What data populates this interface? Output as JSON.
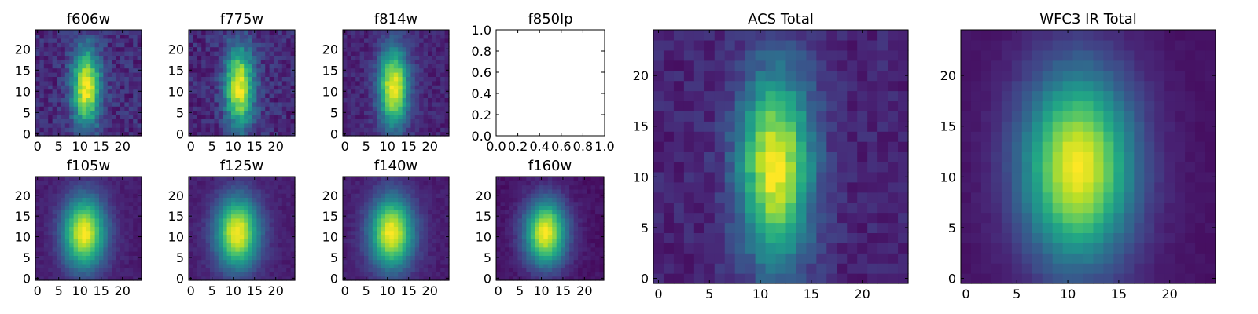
{
  "chart_data": [
    {
      "type": "heatmap",
      "title": "f606w",
      "colormap": "viridis",
      "xlim": [
        -0.5,
        24.5
      ],
      "ylim": [
        -0.5,
        24.5
      ],
      "xticks": [
        0,
        5,
        10,
        15,
        20
      ],
      "yticks": [
        0,
        5,
        10,
        15,
        20
      ],
      "source": {
        "cx": 11.5,
        "cy": 11,
        "sx": 2.4,
        "sy": 6.5,
        "peak": 1.0,
        "bg": 0.12,
        "noise": 0.09
      }
    },
    {
      "type": "heatmap",
      "title": "f775w",
      "colormap": "viridis",
      "xlim": [
        -0.5,
        24.5
      ],
      "ylim": [
        -0.5,
        24.5
      ],
      "xticks": [
        0,
        5,
        10,
        15,
        20
      ],
      "yticks": [
        0,
        5,
        10,
        15,
        20
      ],
      "source": {
        "cx": 11.5,
        "cy": 11,
        "sx": 2.4,
        "sy": 6.5,
        "peak": 1.0,
        "bg": 0.12,
        "noise": 0.09
      }
    },
    {
      "type": "heatmap",
      "title": "f814w",
      "colormap": "viridis",
      "xlim": [
        -0.5,
        24.5
      ],
      "ylim": [
        -0.5,
        24.5
      ],
      "xticks": [
        0,
        5,
        10,
        15,
        20
      ],
      "yticks": [
        0,
        5,
        10,
        15,
        20
      ],
      "source": {
        "cx": 11.5,
        "cy": 11,
        "sx": 2.5,
        "sy": 6.5,
        "peak": 1.0,
        "bg": 0.1,
        "noise": 0.06
      }
    },
    {
      "type": "empty",
      "title": "f850lp",
      "xlim": [
        0,
        1
      ],
      "ylim": [
        0,
        1
      ],
      "xticks": [
        0.0,
        0.2,
        0.4,
        0.6,
        0.8,
        1.0
      ],
      "yticks": [
        0.0,
        0.2,
        0.4,
        0.6,
        0.8,
        1.0
      ],
      "xtick_labels": [
        "0.0",
        "0.2",
        "0.4",
        "0.6",
        "0.8",
        "1.0"
      ],
      "ytick_labels": [
        "0.0",
        "0.2",
        "0.4",
        "0.6",
        "0.8",
        "1.0"
      ]
    },
    {
      "type": "heatmap",
      "title": "f105w",
      "colormap": "viridis",
      "xlim": [
        -0.5,
        24.5
      ],
      "ylim": [
        -0.5,
        24.5
      ],
      "xticks": [
        0,
        5,
        10,
        15,
        20
      ],
      "yticks": [
        0,
        5,
        10,
        15,
        20
      ],
      "source": {
        "cx": 11,
        "cy": 11,
        "sx": 3.5,
        "sy": 6,
        "peak": 1.0,
        "bg": 0.08,
        "noise": 0.03
      }
    },
    {
      "type": "heatmap",
      "title": "f125w",
      "colormap": "viridis",
      "xlim": [
        -0.5,
        24.5
      ],
      "ylim": [
        -0.5,
        24.5
      ],
      "xticks": [
        0,
        5,
        10,
        15,
        20
      ],
      "yticks": [
        0,
        5,
        10,
        15,
        20
      ],
      "source": {
        "cx": 11,
        "cy": 11,
        "sx": 3.6,
        "sy": 6,
        "peak": 1.0,
        "bg": 0.08,
        "noise": 0.03
      }
    },
    {
      "type": "heatmap",
      "title": "f140w",
      "colormap": "viridis",
      "xlim": [
        -0.5,
        24.5
      ],
      "ylim": [
        -0.5,
        24.5
      ],
      "xticks": [
        0,
        5,
        10,
        15,
        20
      ],
      "yticks": [
        0,
        5,
        10,
        15,
        20
      ],
      "source": {
        "cx": 11,
        "cy": 11,
        "sx": 3.6,
        "sy": 6,
        "peak": 1.0,
        "bg": 0.08,
        "noise": 0.03
      }
    },
    {
      "type": "heatmap",
      "title": "f160w",
      "colormap": "viridis",
      "xlim": [
        -0.5,
        24.5
      ],
      "ylim": [
        -0.5,
        24.5
      ],
      "xticks": [
        0,
        5,
        10,
        15,
        20
      ],
      "yticks": [
        0,
        5,
        10,
        15,
        20
      ],
      "source": {
        "cx": 11,
        "cy": 11,
        "sx": 3.4,
        "sy": 5.5,
        "peak": 1.0,
        "bg": 0.05,
        "noise": 0.03
      }
    },
    {
      "type": "heatmap",
      "title": "ACS Total",
      "colormap": "viridis",
      "xlim": [
        -0.5,
        24.5
      ],
      "ylim": [
        -0.5,
        24.5
      ],
      "xticks": [
        0,
        5,
        10,
        15,
        20
      ],
      "yticks": [
        0,
        5,
        10,
        15,
        20
      ],
      "source": {
        "cx": 11.5,
        "cy": 11,
        "sx": 2.5,
        "sy": 6.5,
        "peak": 1.0,
        "bg": 0.1,
        "noise": 0.06
      }
    },
    {
      "type": "heatmap",
      "title": "WFC3 IR Total",
      "colormap": "viridis",
      "xlim": [
        -0.5,
        24.5
      ],
      "ylim": [
        -0.5,
        24.5
      ],
      "xticks": [
        0,
        5,
        10,
        15,
        20
      ],
      "yticks": [
        0,
        5,
        10,
        15,
        20
      ],
      "source": {
        "cx": 11,
        "cy": 11,
        "sx": 3.8,
        "sy": 6.5,
        "peak": 1.0,
        "bg": 0.05,
        "noise": 0.015
      }
    }
  ]
}
